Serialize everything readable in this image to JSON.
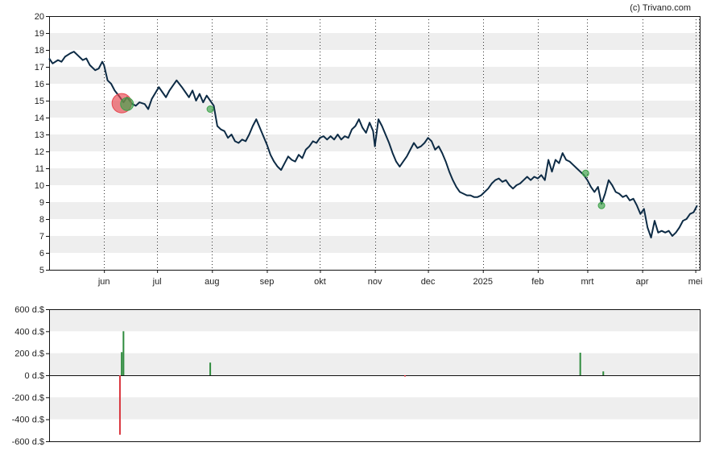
{
  "credit": "(c) Trivano.com",
  "chart_data": [
    {
      "type": "line",
      "y_ticks": [
        "5",
        "6",
        "7",
        "8",
        "9",
        "10",
        "11",
        "12",
        "13",
        "14",
        "15",
        "16",
        "17",
        "18",
        "19",
        "20"
      ],
      "ylim": [
        5,
        20
      ],
      "x_tick_labels": [
        "jun",
        "jul",
        "aug",
        "sep",
        "okt",
        "nov",
        "dec",
        "2025",
        "feb",
        "mrt",
        "apr",
        "mei"
      ],
      "x_tick_dates": [
        "2024-06-01",
        "2024-07-01",
        "2024-08-01",
        "2024-09-01",
        "2024-10-01",
        "2024-11-01",
        "2024-12-01",
        "2025-01-01",
        "2025-02-01",
        "2025-03-01",
        "2025-04-01",
        "2025-05-01"
      ],
      "xlim": [
        "2024-05-01",
        "2025-05-03"
      ],
      "grid": "horizontal bands, dotted vertical month lines",
      "series": [
        {
          "color": "#0d2b45",
          "points": [
            [
              "2024-05-01",
              17.5
            ],
            [
              "2024-05-03",
              17.2
            ],
            [
              "2024-05-06",
              17.4
            ],
            [
              "2024-05-08",
              17.3
            ],
            [
              "2024-05-10",
              17.6
            ],
            [
              "2024-05-13",
              17.8
            ],
            [
              "2024-05-15",
              17.9
            ],
            [
              "2024-05-17",
              17.7
            ],
            [
              "2024-05-20",
              17.4
            ],
            [
              "2024-05-22",
              17.5
            ],
            [
              "2024-05-24",
              17.1
            ],
            [
              "2024-05-27",
              16.8
            ],
            [
              "2024-05-29",
              16.9
            ],
            [
              "2024-05-31",
              17.3
            ],
            [
              "2024-06-01",
              17.1
            ],
            [
              "2024-06-03",
              16.2
            ],
            [
              "2024-06-05",
              16.0
            ],
            [
              "2024-06-07",
              15.6
            ],
            [
              "2024-06-10",
              15.2
            ],
            [
              "2024-06-12",
              14.9
            ],
            [
              "2024-06-14",
              15.2
            ],
            [
              "2024-06-17",
              14.8
            ],
            [
              "2024-06-19",
              14.7
            ],
            [
              "2024-06-21",
              14.9
            ],
            [
              "2024-06-24",
              14.8
            ],
            [
              "2024-06-26",
              14.5
            ],
            [
              "2024-06-28",
              15.1
            ],
            [
              "2024-07-02",
              15.8
            ],
            [
              "2024-07-04",
              15.5
            ],
            [
              "2024-07-06",
              15.2
            ],
            [
              "2024-07-08",
              15.6
            ],
            [
              "2024-07-10",
              15.9
            ],
            [
              "2024-07-12",
              16.2
            ],
            [
              "2024-07-15",
              15.8
            ],
            [
              "2024-07-17",
              15.5
            ],
            [
              "2024-07-19",
              15.2
            ],
            [
              "2024-07-21",
              15.6
            ],
            [
              "2024-07-23",
              15.0
            ],
            [
              "2024-07-25",
              15.4
            ],
            [
              "2024-07-27",
              14.9
            ],
            [
              "2024-07-29",
              15.3
            ],
            [
              "2024-07-31",
              15.0
            ],
            [
              "2024-08-02",
              14.7
            ],
            [
              "2024-08-04",
              13.5
            ],
            [
              "2024-08-06",
              13.3
            ],
            [
              "2024-08-08",
              13.2
            ],
            [
              "2024-08-10",
              12.8
            ],
            [
              "2024-08-12",
              13.0
            ],
            [
              "2024-08-14",
              12.6
            ],
            [
              "2024-08-16",
              12.5
            ],
            [
              "2024-08-18",
              12.7
            ],
            [
              "2024-08-20",
              12.6
            ],
            [
              "2024-08-22",
              13.0
            ],
            [
              "2024-08-24",
              13.5
            ],
            [
              "2024-08-26",
              13.9
            ],
            [
              "2024-08-28",
              13.4
            ],
            [
              "2024-08-30",
              12.9
            ],
            [
              "2024-09-01",
              12.4
            ],
            [
              "2024-09-03",
              11.8
            ],
            [
              "2024-09-05",
              11.4
            ],
            [
              "2024-09-07",
              11.1
            ],
            [
              "2024-09-09",
              10.9
            ],
            [
              "2024-09-11",
              11.3
            ],
            [
              "2024-09-13",
              11.7
            ],
            [
              "2024-09-15",
              11.5
            ],
            [
              "2024-09-17",
              11.4
            ],
            [
              "2024-09-19",
              11.8
            ],
            [
              "2024-09-21",
              11.6
            ],
            [
              "2024-09-23",
              12.1
            ],
            [
              "2024-09-25",
              12.3
            ],
            [
              "2024-09-27",
              12.6
            ],
            [
              "2024-09-29",
              12.5
            ],
            [
              "2024-10-01",
              12.8
            ],
            [
              "2024-10-03",
              12.9
            ],
            [
              "2024-10-05",
              12.7
            ],
            [
              "2024-10-07",
              12.9
            ],
            [
              "2024-10-09",
              12.7
            ],
            [
              "2024-10-11",
              13.0
            ],
            [
              "2024-10-13",
              12.7
            ],
            [
              "2024-10-15",
              12.9
            ],
            [
              "2024-10-17",
              12.8
            ],
            [
              "2024-10-19",
              13.3
            ],
            [
              "2024-10-21",
              13.5
            ],
            [
              "2024-10-23",
              13.9
            ],
            [
              "2024-10-25",
              13.4
            ],
            [
              "2024-10-27",
              13.1
            ],
            [
              "2024-10-29",
              13.7
            ],
            [
              "2024-10-31",
              13.2
            ],
            [
              "2024-11-01",
              12.3
            ],
            [
              "2024-11-03",
              13.9
            ],
            [
              "2024-11-05",
              13.5
            ],
            [
              "2024-11-07",
              13.0
            ],
            [
              "2024-11-09",
              12.5
            ],
            [
              "2024-11-11",
              11.9
            ],
            [
              "2024-11-13",
              11.4
            ],
            [
              "2024-11-15",
              11.1
            ],
            [
              "2024-11-17",
              11.4
            ],
            [
              "2024-11-19",
              11.7
            ],
            [
              "2024-11-21",
              12.1
            ],
            [
              "2024-11-23",
              12.5
            ],
            [
              "2024-11-25",
              12.2
            ],
            [
              "2024-11-27",
              12.3
            ],
            [
              "2024-11-29",
              12.5
            ],
            [
              "2024-12-01",
              12.8
            ],
            [
              "2024-12-03",
              12.6
            ],
            [
              "2024-12-05",
              12.1
            ],
            [
              "2024-12-07",
              12.3
            ],
            [
              "2024-12-09",
              11.9
            ],
            [
              "2024-12-11",
              11.4
            ],
            [
              "2024-12-13",
              10.8
            ],
            [
              "2024-12-15",
              10.3
            ],
            [
              "2024-12-17",
              9.9
            ],
            [
              "2024-12-19",
              9.6
            ],
            [
              "2024-12-21",
              9.5
            ],
            [
              "2024-12-23",
              9.4
            ],
            [
              "2024-12-25",
              9.4
            ],
            [
              "2024-12-27",
              9.3
            ],
            [
              "2024-12-29",
              9.3
            ],
            [
              "2024-12-31",
              9.4
            ],
            [
              "2025-01-02",
              9.6
            ],
            [
              "2025-01-04",
              9.8
            ],
            [
              "2025-01-06",
              10.1
            ],
            [
              "2025-01-08",
              10.3
            ],
            [
              "2025-01-10",
              10.4
            ],
            [
              "2025-01-12",
              10.2
            ],
            [
              "2025-01-14",
              10.3
            ],
            [
              "2025-01-16",
              10.0
            ],
            [
              "2025-01-18",
              9.8
            ],
            [
              "2025-01-20",
              10.0
            ],
            [
              "2025-01-22",
              10.1
            ],
            [
              "2025-01-24",
              10.3
            ],
            [
              "2025-01-26",
              10.5
            ],
            [
              "2025-01-28",
              10.3
            ],
            [
              "2025-01-30",
              10.5
            ],
            [
              "2025-02-01",
              10.4
            ],
            [
              "2025-02-03",
              10.6
            ],
            [
              "2025-02-05",
              10.3
            ],
            [
              "2025-02-07",
              11.5
            ],
            [
              "2025-02-09",
              10.8
            ],
            [
              "2025-02-11",
              11.5
            ],
            [
              "2025-02-13",
              11.3
            ],
            [
              "2025-02-15",
              11.9
            ],
            [
              "2025-02-17",
              11.5
            ],
            [
              "2025-02-19",
              11.4
            ],
            [
              "2025-02-21",
              11.2
            ],
            [
              "2025-02-23",
              11.0
            ],
            [
              "2025-02-25",
              10.8
            ],
            [
              "2025-02-27",
              10.6
            ],
            [
              "2025-03-01",
              10.3
            ],
            [
              "2025-03-03",
              9.9
            ],
            [
              "2025-03-05",
              9.6
            ],
            [
              "2025-03-07",
              9.9
            ],
            [
              "2025-03-09",
              8.9
            ],
            [
              "2025-03-11",
              9.5
            ],
            [
              "2025-03-13",
              10.3
            ],
            [
              "2025-03-15",
              10.0
            ],
            [
              "2025-03-17",
              9.6
            ],
            [
              "2025-03-19",
              9.5
            ],
            [
              "2025-03-21",
              9.3
            ],
            [
              "2025-03-23",
              9.4
            ],
            [
              "2025-03-25",
              9.1
            ],
            [
              "2025-03-27",
              9.2
            ],
            [
              "2025-03-29",
              8.8
            ],
            [
              "2025-03-31",
              8.3
            ],
            [
              "2025-04-02",
              8.6
            ],
            [
              "2025-04-04",
              7.5
            ],
            [
              "2025-04-06",
              6.9
            ],
            [
              "2025-04-08",
              7.9
            ],
            [
              "2025-04-10",
              7.2
            ],
            [
              "2025-04-12",
              7.3
            ],
            [
              "2025-04-14",
              7.2
            ],
            [
              "2025-04-16",
              7.3
            ],
            [
              "2025-04-18",
              7.0
            ],
            [
              "2025-04-20",
              7.2
            ],
            [
              "2025-04-22",
              7.5
            ],
            [
              "2025-04-24",
              7.9
            ],
            [
              "2025-04-26",
              8.0
            ],
            [
              "2025-04-28",
              8.3
            ],
            [
              "2025-04-30",
              8.4
            ],
            [
              "2025-05-02",
              8.8
            ]
          ]
        }
      ],
      "markers": [
        {
          "date": "2024-06-11",
          "value": 14.85,
          "kind": "large",
          "color": "#e8464f"
        },
        {
          "date": "2024-06-14",
          "value": 14.8,
          "kind": "medium",
          "color": "#3da34a"
        },
        {
          "date": "2024-07-31",
          "value": 14.5,
          "kind": "small",
          "color": "#3da34a"
        },
        {
          "date": "2025-02-28",
          "value": 10.7,
          "kind": "small",
          "color": "#3da34a"
        },
        {
          "date": "2025-03-09",
          "value": 8.8,
          "kind": "small",
          "color": "#3da34a"
        }
      ]
    },
    {
      "type": "bar",
      "y_tick_labels": [
        "600 d.$",
        "400 d.$",
        "200 d.$",
        "0 d.$",
        "-200 d.$",
        "-400 d.$",
        "-600 d.$"
      ],
      "y_tick_values": [
        600,
        400,
        200,
        0,
        -200,
        -400,
        -600
      ],
      "ylim": [
        -600,
        600
      ],
      "bars": [
        {
          "date": "2024-06-10",
          "value": -540,
          "color": "#d9363e"
        },
        {
          "date": "2024-06-11",
          "value": 210,
          "color": "#2e8b3d"
        },
        {
          "date": "2024-06-12",
          "value": 400,
          "color": "#2e8b3d"
        },
        {
          "date": "2024-07-31",
          "value": 115,
          "color": "#2e8b3d"
        },
        {
          "date": "2024-11-18",
          "value": -12,
          "color": "#d9363e"
        },
        {
          "date": "2025-02-25",
          "value": 205,
          "color": "#2e8b3d"
        },
        {
          "date": "2025-03-10",
          "value": 35,
          "color": "#2e8b3d"
        }
      ]
    }
  ]
}
